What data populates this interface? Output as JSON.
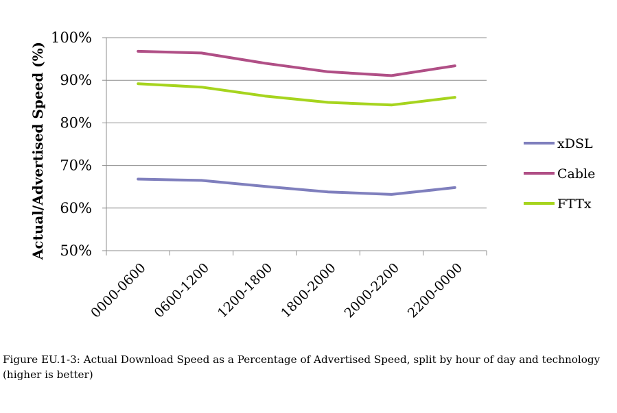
{
  "chart_data": {
    "type": "line",
    "categories": [
      "0000-0600",
      "0600-1200",
      "1200-1800",
      "1800-2000",
      "2000-2200",
      "2200-0000"
    ],
    "series": [
      {
        "name": "xDSL",
        "color": "#7f7fbd",
        "values": [
          66.8,
          66.5,
          65.1,
          63.8,
          63.2,
          64.8
        ]
      },
      {
        "name": "Cable",
        "color": "#b04f86",
        "values": [
          96.8,
          96.4,
          94.0,
          92.0,
          91.1,
          93.4
        ]
      },
      {
        "name": "FTTx",
        "color": "#a6d41e",
        "values": [
          89.2,
          88.4,
          86.3,
          84.8,
          84.2,
          86.0
        ]
      }
    ],
    "ylim": [
      50,
      100
    ],
    "yticks": [
      "50%",
      "60%",
      "70%",
      "80%",
      "90%",
      "100%"
    ],
    "ylabel": "Actual/Advertised Speed (%)",
    "xlabel": "",
    "grid": true,
    "legend": "right"
  },
  "caption": "Figure EU.1-3: Actual Download Speed as a Percentage of Advertised Speed, split by hour of day and technology (higher is better)"
}
